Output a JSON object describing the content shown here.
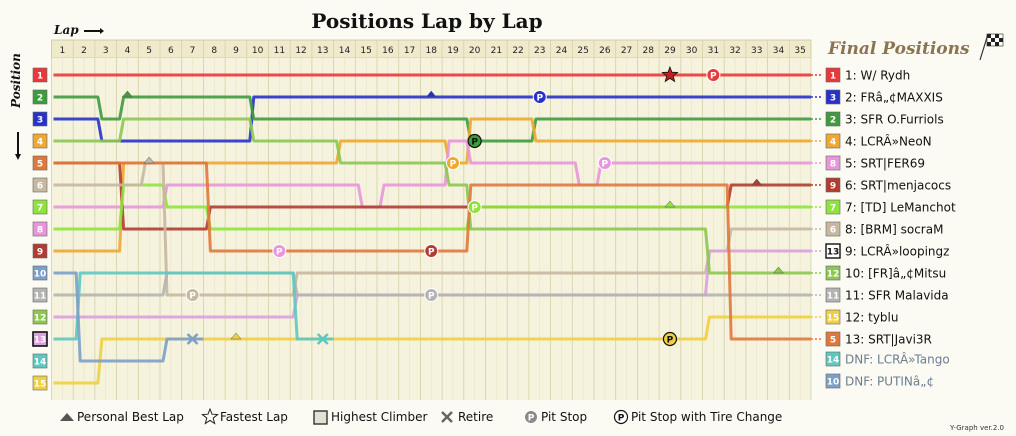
{
  "chart_data": {
    "type": "line",
    "title": "Positions Lap by Lap",
    "xlabel": "Lap",
    "ylabel": "Position",
    "final_title": "Final Positions",
    "laps": [
      1,
      2,
      3,
      4,
      5,
      6,
      7,
      8,
      9,
      10,
      11,
      12,
      13,
      14,
      15,
      16,
      17,
      18,
      19,
      20,
      21,
      22,
      23,
      24,
      25,
      26,
      27,
      28,
      29,
      30,
      31,
      32,
      33,
      34,
      35
    ],
    "start_positions": [
      1,
      2,
      3,
      4,
      5,
      6,
      7,
      8,
      9,
      10,
      11,
      12,
      13,
      14,
      15
    ],
    "version": "Y-Graph ver.2.0",
    "series": [
      {
        "name": "1: W/ Rydh",
        "color": "#e8383b",
        "final": "1",
        "final_shape": "plain",
        "positions": [
          1,
          1,
          1,
          1,
          1,
          1,
          1,
          1,
          1,
          1,
          1,
          1,
          1,
          1,
          1,
          1,
          1,
          1,
          1,
          1,
          1,
          1,
          1,
          1,
          1,
          1,
          1,
          1,
          1,
          1,
          1,
          1,
          1,
          1,
          1
        ],
        "events": [
          {
            "lap": 29,
            "type": "fastest"
          },
          {
            "lap": 31,
            "type": "pit",
            "fill": "#e8383b"
          }
        ]
      },
      {
        "name": "2: FRâ„¢MAXXIS",
        "color": "#2832c8",
        "final": "3",
        "final_shape": "plain",
        "positions": [
          3,
          3,
          4,
          4,
          4,
          4,
          4,
          4,
          4,
          2,
          2,
          2,
          2,
          2,
          2,
          2,
          2,
          2,
          2,
          2,
          2,
          2,
          2,
          2,
          2,
          2,
          2,
          2,
          2,
          2,
          2,
          2,
          2,
          2,
          2
        ],
        "events": [
          {
            "lap": 18,
            "type": "best"
          },
          {
            "lap": 23,
            "type": "pit",
            "fill": "#2832c8"
          }
        ]
      },
      {
        "name": "3: SFR O.Furriols",
        "color": "#3e9b3e",
        "final": "2",
        "final_shape": "plain",
        "positions": [
          2,
          2,
          3,
          2,
          2,
          2,
          2,
          2,
          2,
          3,
          3,
          3,
          3,
          3,
          3,
          3,
          3,
          3,
          3,
          4,
          4,
          4,
          3,
          3,
          3,
          3,
          3,
          3,
          3,
          3,
          3,
          3,
          3,
          3,
          3
        ],
        "events": [
          {
            "lap": 4,
            "type": "best"
          },
          {
            "lap": 20,
            "type": "pit_tire",
            "fill": "#3e9b3e"
          }
        ]
      },
      {
        "name": "4: LCRÂ»NeoN",
        "color": "#f0a830",
        "final": "4",
        "final_shape": "plain",
        "positions": [
          9,
          9,
          9,
          5,
          5,
          5,
          5,
          5,
          5,
          5,
          5,
          5,
          5,
          4,
          4,
          4,
          4,
          4,
          5,
          3,
          3,
          3,
          4,
          4,
          4,
          4,
          4,
          4,
          4,
          4,
          4,
          4,
          4,
          4,
          4
        ],
        "events": [
          {
            "lap": 19,
            "type": "pit",
            "fill": "#f0a830"
          }
        ]
      },
      {
        "name": "5: SRT|FER69",
        "color": "#e896dc",
        "final": "8",
        "final_shape": "plain",
        "positions": [
          7,
          7,
          7,
          7,
          7,
          6,
          6,
          6,
          6,
          6,
          6,
          6,
          6,
          6,
          7,
          6,
          6,
          6,
          4,
          5,
          5,
          5,
          5,
          5,
          6,
          5,
          5,
          5,
          5,
          5,
          5,
          5,
          5,
          5,
          5
        ],
        "events": [
          {
            "lap": 26,
            "type": "pit",
            "fill": "#e896dc"
          }
        ]
      },
      {
        "name": "6: SRT|menjacocs",
        "color": "#b03c32",
        "final": "9",
        "final_shape": "plain",
        "positions": [
          5,
          5,
          5,
          8,
          8,
          8,
          8,
          7,
          7,
          7,
          7,
          7,
          7,
          7,
          7,
          7,
          7,
          7,
          7,
          7,
          7,
          7,
          7,
          7,
          7,
          7,
          7,
          7,
          7,
          7,
          7,
          6,
          6,
          6,
          6
        ],
        "events": [
          {
            "lap": 33,
            "type": "best"
          }
        ]
      },
      {
        "name": "7: [TD] LeManchot",
        "color": "#8ee43c",
        "final": "7",
        "final_shape": "plain",
        "positions": [
          8,
          8,
          8,
          6,
          6,
          7,
          7,
          8,
          8,
          8,
          8,
          8,
          8,
          8,
          8,
          8,
          8,
          8,
          8,
          7,
          7,
          7,
          7,
          7,
          7,
          7,
          7,
          7,
          7,
          7,
          7,
          7,
          7,
          7,
          7
        ],
        "events": [
          {
            "lap": 20,
            "type": "pit",
            "fill": "#8ee43c"
          },
          {
            "lap": 29,
            "type": "best"
          }
        ]
      },
      {
        "name": "8: [BRM] socraM",
        "color": "#c8b8a0",
        "final": "6",
        "final_shape": "plain",
        "positions": [
          6,
          6,
          6,
          6,
          5,
          11,
          11,
          11,
          11,
          11,
          11,
          10,
          10,
          10,
          10,
          10,
          10,
          10,
          10,
          10,
          10,
          10,
          10,
          10,
          10,
          10,
          10,
          10,
          10,
          10,
          9,
          8,
          8,
          8,
          8
        ],
        "events": [
          {
            "lap": 5,
            "type": "best"
          },
          {
            "lap": 7,
            "type": "pit",
            "fill": "#c8b8a0"
          }
        ]
      },
      {
        "name": "9: LCRÂ»loopingz",
        "color": "#dda0dc",
        "final": "13",
        "final_shape": "climber",
        "positions": [
          12,
          12,
          12,
          12,
          12,
          12,
          12,
          12,
          12,
          12,
          12,
          11,
          11,
          11,
          11,
          11,
          11,
          11,
          11,
          11,
          11,
          11,
          11,
          11,
          11,
          11,
          11,
          11,
          11,
          11,
          9,
          9,
          9,
          9,
          9
        ],
        "events": []
      },
      {
        "name": "10: [FR]â„¢Mitsu",
        "color": "#8cc850",
        "final": "12",
        "final_shape": "plain",
        "positions": [
          4,
          4,
          4,
          3,
          3,
          3,
          3,
          3,
          3,
          4,
          4,
          4,
          4,
          5,
          5,
          5,
          5,
          5,
          6,
          8,
          8,
          8,
          8,
          8,
          8,
          8,
          8,
          8,
          8,
          8,
          10,
          10,
          10,
          10,
          10
        ],
        "events": [
          {
            "lap": 34,
            "type": "best"
          }
        ]
      },
      {
        "name": "11: SFR Malavida",
        "color": "#b4b4b4",
        "final": "11",
        "final_shape": "plain",
        "positions": [
          11,
          11,
          11,
          11,
          11,
          10,
          10,
          10,
          10,
          10,
          10,
          11,
          11,
          11,
          11,
          11,
          11,
          11,
          11,
          11,
          11,
          11,
          11,
          11,
          11,
          11,
          11,
          11,
          11,
          11,
          11,
          11,
          11,
          11,
          11
        ],
        "events": [
          {
            "lap": 18,
            "type": "pit",
            "fill": "#b4b4b4"
          }
        ]
      },
      {
        "name": "12: tyblu",
        "color": "#f0d040",
        "final": "15",
        "final_shape": "plain",
        "positions": [
          15,
          15,
          13,
          13,
          13,
          13,
          13,
          13,
          13,
          13,
          13,
          13,
          13,
          13,
          13,
          13,
          13,
          13,
          13,
          13,
          13,
          13,
          13,
          13,
          13,
          13,
          13,
          13,
          13,
          13,
          12,
          12,
          12,
          12,
          12
        ],
        "events": [
          {
            "lap": 9,
            "type": "best"
          },
          {
            "lap": 29,
            "type": "pit_tire",
            "fill": "#f0d040"
          }
        ]
      },
      {
        "name": "13: SRT|Javi3R",
        "color": "#e0783c",
        "final": "5",
        "final_shape": "plain",
        "positions": [
          5,
          5,
          5,
          5,
          5,
          5,
          5,
          9,
          9,
          9,
          9,
          9,
          9,
          9,
          9,
          9,
          9,
          9,
          9,
          6,
          6,
          6,
          6,
          6,
          6,
          6,
          6,
          6,
          6,
          6,
          6,
          13,
          13,
          13,
          13
        ],
        "events": [
          {
            "lap": 18,
            "type": "pit",
            "fill": "#b03c32"
          },
          {
            "lap": 11,
            "type": "pit",
            "fill": "#e896dc"
          }
        ]
      },
      {
        "name": "DNF: LCRÂ»Tango",
        "color": "#5ec8c0",
        "final": "14",
        "final_shape": "plain",
        "dnf": true,
        "positions": [
          13,
          10,
          10,
          10,
          10,
          10,
          10,
          10,
          10,
          10,
          10,
          13,
          13
        ],
        "events": [
          {
            "lap": 13,
            "type": "retire"
          }
        ]
      },
      {
        "name": "DNF: PUTINâ„¢",
        "color": "#7ca0c8",
        "final": "10",
        "final_shape": "plain",
        "dnf": true,
        "positions": [
          10,
          14,
          14,
          14,
          14,
          13,
          13
        ],
        "events": [
          {
            "lap": 7,
            "type": "retire"
          }
        ]
      }
    ],
    "legend": [
      {
        "type": "best",
        "label": "Personal Best Lap"
      },
      {
        "type": "fastest",
        "label": "Fastest Lap"
      },
      {
        "type": "climber",
        "label": "Highest Climber"
      },
      {
        "type": "retire",
        "label": "Retire"
      },
      {
        "type": "pit",
        "label": "Pit Stop"
      },
      {
        "type": "pit_tire",
        "label": "Pit Stop with Tire Change"
      }
    ]
  },
  "colors": {
    "start_labels": [
      "#e8383b",
      "#3e9b3e",
      "#2832c8",
      "#f0a830",
      "#e0783c",
      "#c8b8a0",
      "#8ee43c",
      "#e896dc",
      "#b03c32",
      "#7ca0c8",
      "#b4b4b4",
      "#8cc850",
      "#dda0dc",
      "#5ec8c0",
      "#f0d040"
    ]
  }
}
